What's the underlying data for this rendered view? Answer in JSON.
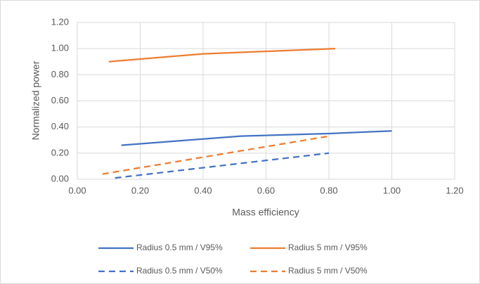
{
  "chart_data": {
    "type": "line",
    "xlabel": "Mass efficiency",
    "ylabel": "Normalized power",
    "xlim": [
      0,
      1.2
    ],
    "ylim": [
      0,
      1.2
    ],
    "xticks": [
      {
        "value": 0,
        "label": "0.00"
      },
      {
        "value": 0.2,
        "label": "0.20"
      },
      {
        "value": 0.4,
        "label": "0.40"
      },
      {
        "value": 0.6,
        "label": "0.60"
      },
      {
        "value": 0.8,
        "label": "0.80"
      },
      {
        "value": 1,
        "label": "1.00"
      },
      {
        "value": 1.2,
        "label": "1.20"
      }
    ],
    "yticks": [
      {
        "value": 0,
        "label": "0.00"
      },
      {
        "value": 0.2,
        "label": "0.20"
      },
      {
        "value": 0.4,
        "label": "0.40"
      },
      {
        "value": 0.6,
        "label": "0.60"
      },
      {
        "value": 0.8,
        "label": "0.80"
      },
      {
        "value": 1,
        "label": "1.00"
      },
      {
        "value": 1.2,
        "label": "1.20"
      }
    ],
    "grid": true,
    "legend": "bottom",
    "series": [
      {
        "name": "Radius 0.5 mm / V95%",
        "color": "#4472c4",
        "line_style": "solid",
        "x": [
          0.14,
          0.3,
          0.52,
          0.8,
          1.0
        ],
        "values": [
          0.26,
          0.29,
          0.33,
          0.35,
          0.37
        ]
      },
      {
        "name": "Radius 5 mm / V95%",
        "color": "#ed7d31",
        "line_style": "solid",
        "x": [
          0.1,
          0.4,
          0.82
        ],
        "values": [
          0.9,
          0.96,
          1.0
        ]
      },
      {
        "name": "Radius 0.5 mm / V50%",
        "color": "#4472c4",
        "line_style": "dashed",
        "x": [
          0.12,
          0.8
        ],
        "values": [
          0.01,
          0.2
        ]
      },
      {
        "name": "Radius 5 mm / V50%",
        "color": "#ed7d31",
        "line_style": "dashed",
        "x": [
          0.08,
          0.8
        ],
        "values": [
          0.04,
          0.33
        ]
      }
    ]
  }
}
